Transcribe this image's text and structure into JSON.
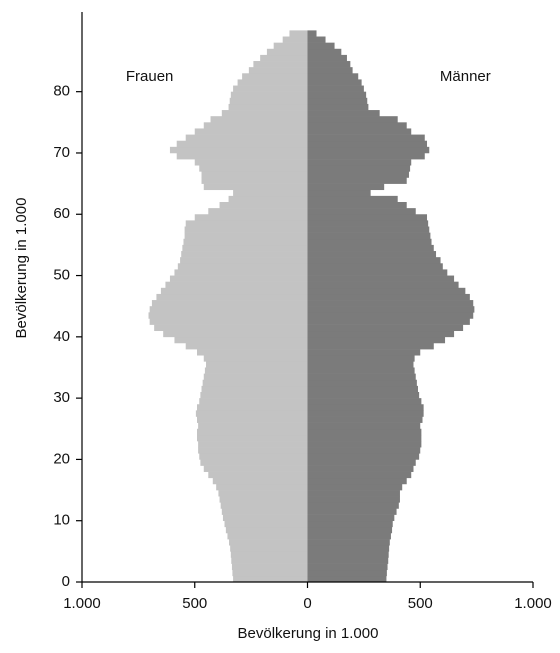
{
  "chart_data": {
    "type": "pyramid",
    "xlabel": "Bevölkerung in 1.000",
    "ylabel": "Bevölkerung in 1.000",
    "xlim": [
      -1000,
      1000
    ],
    "xticks": [
      {
        "value": -1000,
        "label": "1.000"
      },
      {
        "value": -500,
        "label": "500"
      },
      0,
      500,
      {
        "value": 1000,
        "label": "1.000"
      }
    ],
    "ylim": [
      0,
      93
    ],
    "yticks": [
      0,
      10,
      20,
      30,
      40,
      50,
      60,
      70,
      80
    ],
    "series": [
      {
        "name": "Frauen",
        "side": "left",
        "color": "#c3c3c3",
        "values": [
          330,
          333,
          335,
          338,
          340,
          343,
          348,
          355,
          362,
          368,
          375,
          380,
          385,
          390,
          395,
          405,
          420,
          440,
          460,
          475,
          480,
          485,
          485,
          490,
          490,
          485,
          490,
          495,
          490,
          480,
          475,
          470,
          465,
          460,
          455,
          450,
          460,
          490,
          540,
          590,
          640,
          680,
          700,
          705,
          700,
          690,
          670,
          650,
          630,
          610,
          590,
          575,
          565,
          560,
          555,
          550,
          545,
          545,
          540,
          500,
          440,
          390,
          350,
          330,
          460,
          470,
          470,
          480,
          500,
          580,
          610,
          580,
          540,
          500,
          460,
          430,
          380,
          350,
          345,
          340,
          330,
          310,
          290,
          260,
          240,
          210,
          180,
          150,
          110,
          80
        ]
      },
      {
        "name": "Männer",
        "side": "right",
        "color": "#7b7b7b",
        "values": [
          350,
          352,
          355,
          358,
          360,
          362,
          365,
          370,
          375,
          378,
          385,
          395,
          405,
          410,
          410,
          420,
          440,
          460,
          470,
          480,
          495,
          500,
          505,
          505,
          505,
          500,
          510,
          515,
          515,
          505,
          495,
          490,
          485,
          480,
          475,
          470,
          475,
          500,
          560,
          610,
          650,
          690,
          720,
          735,
          740,
          735,
          720,
          700,
          670,
          650,
          620,
          600,
          590,
          570,
          560,
          550,
          545,
          540,
          535,
          530,
          480,
          440,
          400,
          280,
          340,
          440,
          450,
          455,
          460,
          520,
          540,
          530,
          520,
          460,
          440,
          400,
          320,
          270,
          265,
          260,
          250,
          240,
          225,
          200,
          190,
          175,
          150,
          120,
          80,
          40
        ]
      }
    ]
  }
}
